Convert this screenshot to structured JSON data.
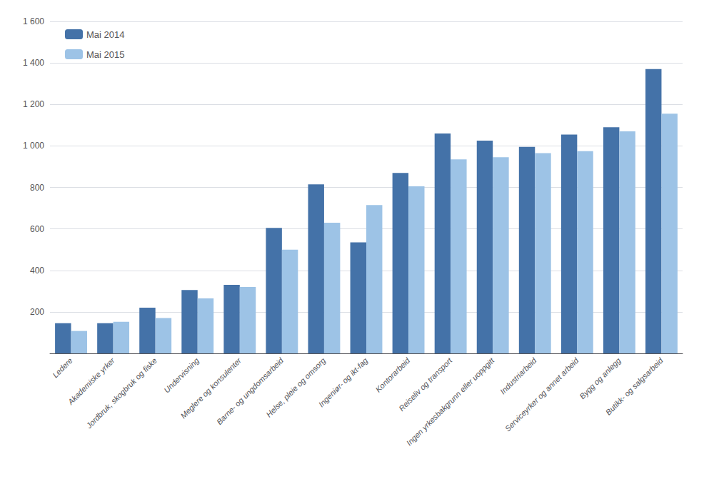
{
  "chart_data": {
    "type": "bar",
    "categories": [
      "Ledere",
      "Akademiske yrker",
      "Jordbruk, skogbruk og fiske",
      "Undervisning",
      "Meglere og konsulenter",
      "Barne- og ungdomsarbeid",
      "Helse, pleie og omsorg",
      "Ingeniør- og ikt-fag",
      "Kontorarbeid",
      "Reiseliv og transport",
      "Ingen yrkesbakgrunn eller uoppgitt",
      "Industriarbeid",
      "Serviceyrker og annet arbeid",
      "Bygg og anlegg",
      "Butikk- og salgsarbeid"
    ],
    "series": [
      {
        "name": "Mai 2014",
        "color": "#4472A8",
        "values": [
          145,
          145,
          220,
          305,
          330,
          605,
          815,
          535,
          870,
          1060,
          1025,
          995,
          1055,
          1090,
          1370
        ]
      },
      {
        "name": "Mai 2015",
        "color": "#9DC3E6",
        "values": [
          108,
          152,
          170,
          265,
          320,
          500,
          630,
          715,
          805,
          935,
          945,
          965,
          975,
          1070,
          1155
        ]
      }
    ],
    "ylim": [
      0,
      1600
    ],
    "yticks": [
      {
        "value": 0,
        "label": ""
      },
      200,
      400,
      600,
      800,
      {
        "value": 1000,
        "label": "1 000"
      },
      {
        "value": 1200,
        "label": "1 200"
      },
      {
        "value": 1400,
        "label": "1 400"
      },
      {
        "value": 1600,
        "label": "1 600"
      }
    ],
    "grid": true,
    "legend": "upper left"
  }
}
